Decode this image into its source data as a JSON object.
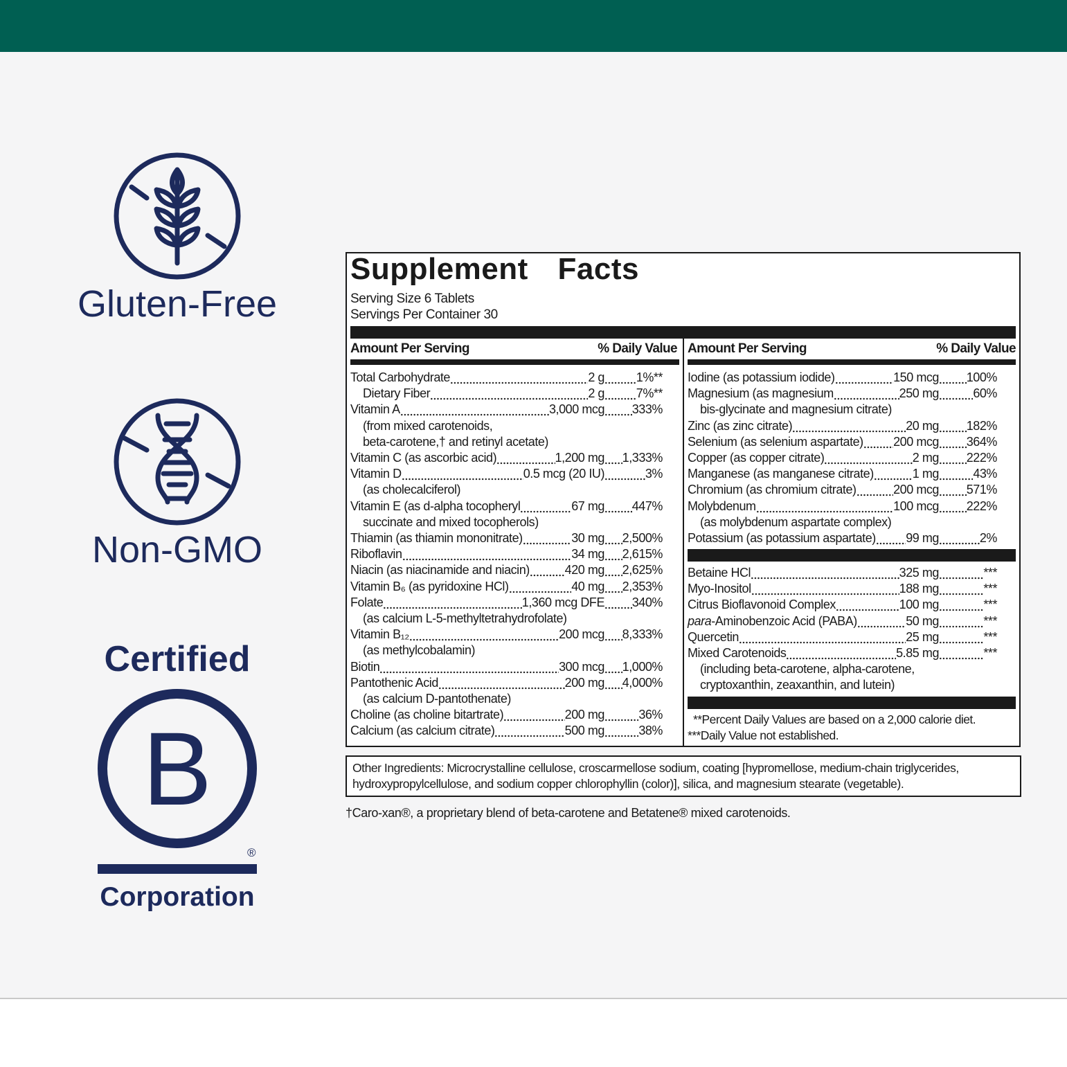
{
  "badges": {
    "gluten_free": "Gluten-Free",
    "non_gmo": "Non-GMO",
    "certified": "Certified",
    "b_logo": "B",
    "registered_mark": "®",
    "corporation": "Corporation"
  },
  "facts": {
    "title": "Supplement Facts",
    "serving_size": "Serving Size 6 Tablets",
    "servings_per_container": "Servings Per Container 30",
    "header_amount": "Amount Per Serving",
    "header_dv": "% Daily Value",
    "left_rows": [
      {
        "name": "Total Carbohydrate",
        "amount": "2 g",
        "dv": "1%**",
        "children": [
          {
            "name": "Dietary Fiber",
            "amount": "2 g",
            "dv": "7%**"
          }
        ]
      },
      {
        "name": "Vitamin A",
        "amount": "3,000 mcg",
        "dv": "333%",
        "notes": [
          "(from mixed carotenoids,",
          "beta-carotene,† and retinyl acetate)"
        ]
      },
      {
        "name": "Vitamin C (as ascorbic acid)",
        "amount": "1,200 mg",
        "dv": "1,333%"
      },
      {
        "name": "Vitamin D",
        "amount": "0.5 mcg (20 IU)",
        "dv": "3%",
        "notes": [
          "(as cholecalciferol)"
        ]
      },
      {
        "name": "Vitamin E (as d-alpha tocopheryl",
        "amount": "67 mg",
        "dv": "447%",
        "notes": [
          "succinate and mixed tocopherols)"
        ]
      },
      {
        "name": "Thiamin (as thiamin mononitrate)",
        "amount": "30 mg",
        "dv": "2,500%"
      },
      {
        "name": "Riboflavin",
        "amount": "34 mg",
        "dv": "2,615%"
      },
      {
        "name": "Niacin (as niacinamide and niacin)",
        "amount": "420 mg",
        "dv": "2,625%"
      },
      {
        "name": "Vitamin B₆ (as pyridoxine HCl)",
        "amount": "40 mg",
        "dv": "2,353%"
      },
      {
        "name": "Folate",
        "amount": "1,360 mcg DFE",
        "dv": "340%",
        "notes": [
          "(as calcium L-5-methyltetrahydrofolate)"
        ]
      },
      {
        "name": "Vitamin B₁₂",
        "amount": "200 mcg",
        "dv": "8,333%",
        "notes": [
          "(as methylcobalamin)"
        ]
      },
      {
        "name": "Biotin",
        "amount": "300 mcg",
        "dv": "1,000%"
      },
      {
        "name": "Pantothenic Acid",
        "amount": "200 mg",
        "dv": "4,000%",
        "notes": [
          "(as calcium D-pantothenate)"
        ]
      },
      {
        "name": "Choline (as choline bitartrate)",
        "amount": "200 mg",
        "dv": "36%"
      },
      {
        "name": "Calcium (as calcium citrate)",
        "amount": "500 mg",
        "dv": "38%"
      }
    ],
    "right_rows": [
      {
        "name": "Iodine (as potassium iodide)",
        "amount": "150 mcg",
        "dv": "100%"
      },
      {
        "name": "Magnesium (as magnesium",
        "amount": "250 mg",
        "dv": "60%",
        "notes": [
          "bis-glycinate and magnesium citrate)"
        ]
      },
      {
        "name": "Zinc (as zinc citrate)",
        "amount": "20 mg",
        "dv": "182%"
      },
      {
        "name": "Selenium (as selenium aspartate)",
        "amount": "200 mcg",
        "dv": "364%"
      },
      {
        "name": "Copper (as copper citrate)",
        "amount": "2 mg",
        "dv": "222%"
      },
      {
        "name": "Manganese (as manganese citrate)",
        "amount": "1 mg",
        "dv": "43%"
      },
      {
        "name": "Chromium (as chromium citrate)",
        "amount": "200 mcg",
        "dv": "571%"
      },
      {
        "name": "Molybdenum",
        "amount": "100 mcg",
        "dv": "222%",
        "notes": [
          "(as molybdenum aspartate complex)"
        ]
      },
      {
        "name": "Potassium (as potassium aspartate)",
        "amount": "99 mg",
        "dv": "2%"
      }
    ],
    "other_rows": [
      {
        "name": "Betaine HCl",
        "amount": "325 mg",
        "dv": "***"
      },
      {
        "name": "Myo-Inositol",
        "amount": "188 mg",
        "dv": "***"
      },
      {
        "name": "Citrus Bioflavonoid Complex",
        "amount": "100 mg",
        "dv": "***"
      },
      {
        "italic_prefix": "para",
        "name": "-Aminobenzoic Acid (PABA)",
        "amount": "50 mg",
        "dv": "***"
      },
      {
        "name": "Quercetin",
        "amount": "25 mg",
        "dv": "***"
      },
      {
        "name": "Mixed Carotenoids",
        "amount": "5.85 mg",
        "dv": "***",
        "notes": [
          "(including beta-carotene, alpha-carotene,",
          "cryptoxanthin, zeaxanthin, and lutein)"
        ]
      }
    ],
    "footnotes": [
      "**Percent Daily Values are based on a 2,000 calorie diet.",
      "***Daily Value not established."
    ]
  },
  "other_ingredients": "Other Ingredients: Microcrystalline cellulose, croscarmellose sodium, coating [hypromellose, medium-chain triglycerides, hydroxypropylcellulose, and sodium copper chlorophyllin (color)], silica, and magnesium stearate (vegetable).",
  "footnote": "†Caro-xan®, a proprietary blend of beta-carotene and Betatene® mixed carotenoids."
}
